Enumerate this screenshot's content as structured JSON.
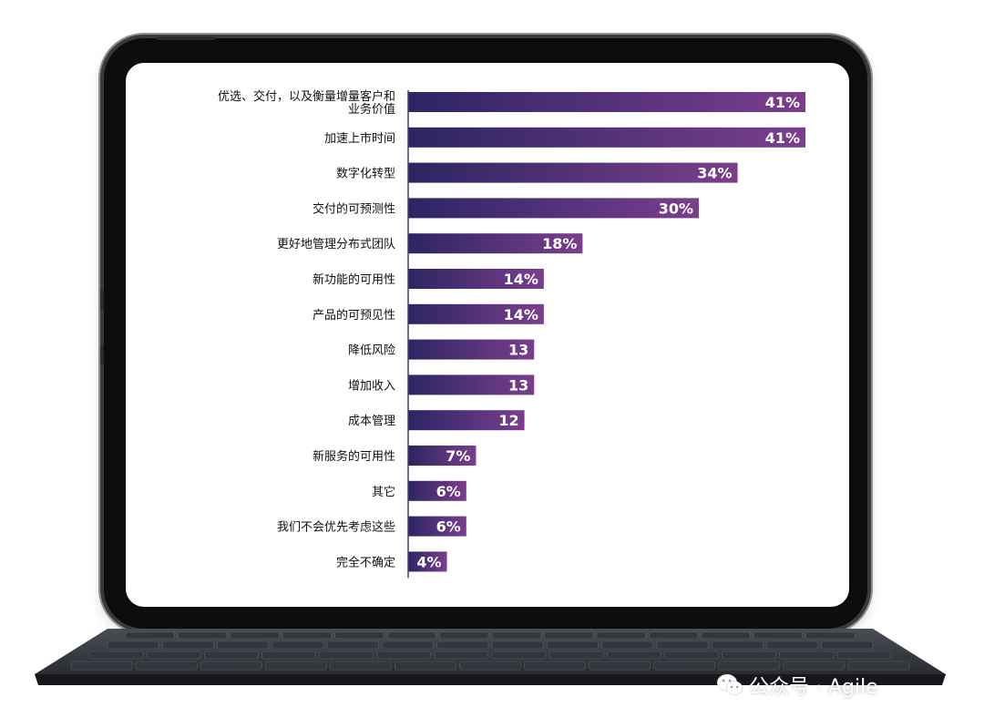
{
  "chart_data": {
    "type": "bar",
    "orientation": "horizontal",
    "title": "",
    "xlabel": "",
    "ylabel": "",
    "xlim": [
      0,
      41
    ],
    "grid": false,
    "legend": "none",
    "categories": [
      [
        "优选、交付，以及衡量增量客户和",
        "业务价值"
      ],
      [
        "加速上市时间"
      ],
      [
        "数字化转型"
      ],
      [
        "交付的可预测性"
      ],
      [
        "更好地管理分布式团队"
      ],
      [
        "新功能的可用性"
      ],
      [
        "产品的可预见性"
      ],
      [
        "降低风险"
      ],
      [
        "增加收入"
      ],
      [
        "成本管理"
      ],
      [
        "新服务的可用性"
      ],
      [
        "其它"
      ],
      [
        "我们不会优先考虑这些"
      ],
      [
        "完全不确定"
      ]
    ],
    "values": [
      41,
      41,
      34,
      30,
      18,
      14,
      14,
      13,
      13,
      12,
      7,
      6,
      6,
      4
    ],
    "labels": [
      "41%",
      "41%",
      "34%",
      "30%",
      "18%",
      "14%",
      "14%",
      "13",
      "13",
      "12",
      "7%",
      "6%",
      "6%",
      "4%"
    ],
    "colors": {
      "bar_start": "#2d2563",
      "bar_end": "#7a3f8c",
      "axis": "#4a3a7a",
      "label_text": "#ffffff",
      "category_text": "#111111"
    }
  },
  "watermark": {
    "icon": "wechat-icon",
    "text": "公众号 · Agile"
  }
}
